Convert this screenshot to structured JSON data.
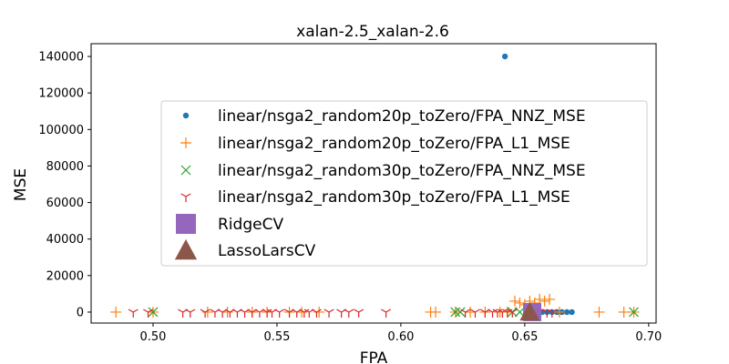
{
  "chart_data": {
    "type": "scatter",
    "title": "xalan-2.5_xalan-2.6",
    "xlabel": "FPA",
    "ylabel": "MSE",
    "xlim": [
      0.475,
      0.703
    ],
    "ylim": [
      -6000,
      147000
    ],
    "xticks": [
      0.5,
      0.55,
      0.6,
      0.65,
      0.7
    ],
    "xtick_labels": [
      "0.50",
      "0.55",
      "0.60",
      "0.65",
      "0.70"
    ],
    "yticks": [
      0,
      20000,
      40000,
      60000,
      80000,
      100000,
      120000,
      140000
    ],
    "ytick_labels": [
      "0",
      "20000",
      "40000",
      "60000",
      "80000",
      "100000",
      "120000",
      "140000"
    ],
    "grid": false,
    "legend_position": "center-right",
    "series": [
      {
        "name": "linear/nsga2_random20p_toZero/FPA_NNZ_MSE",
        "marker": "circle",
        "color": "#1f77b4",
        "x": [
          0.642,
          0.655,
          0.657,
          0.659,
          0.661,
          0.663,
          0.665,
          0.667,
          0.669,
          0.652,
          0.653
        ],
        "y": [
          140000,
          0,
          0,
          0,
          0,
          0,
          0,
          0,
          0,
          500,
          300
        ]
      },
      {
        "name": "linear/nsga2_random20p_toZero/FPA_L1_MSE",
        "marker": "plus",
        "color": "#ff7f0e",
        "x": [
          0.485,
          0.5,
          0.522,
          0.53,
          0.54,
          0.546,
          0.555,
          0.56,
          0.567,
          0.612,
          0.614,
          0.622,
          0.628,
          0.634,
          0.64,
          0.643,
          0.646,
          0.648,
          0.65,
          0.652,
          0.654,
          0.656,
          0.658,
          0.66,
          0.664,
          0.68,
          0.69,
          0.694
        ],
        "y": [
          0,
          0,
          0,
          0,
          0,
          0,
          0,
          0,
          0,
          0,
          0,
          0,
          0,
          0,
          0,
          0,
          6000,
          5000,
          4000,
          6000,
          5000,
          7000,
          6000,
          7000,
          0,
          0,
          0,
          0
        ]
      },
      {
        "name": "linear/nsga2_random30p_toZero/FPA_NNZ_MSE",
        "marker": "x",
        "color": "#2ca02c",
        "x": [
          0.5,
          0.622,
          0.624,
          0.645,
          0.648,
          0.694
        ],
        "y": [
          0,
          0,
          0,
          0,
          0,
          0
        ]
      },
      {
        "name": "linear/nsga2_random30p_toZero/FPA_L1_MSE",
        "marker": "tri_down",
        "color": "#d62728",
        "x": [
          0.492,
          0.498,
          0.512,
          0.515,
          0.521,
          0.525,
          0.528,
          0.531,
          0.534,
          0.537,
          0.54,
          0.543,
          0.546,
          0.548,
          0.551,
          0.555,
          0.558,
          0.561,
          0.563,
          0.566,
          0.571,
          0.576,
          0.579,
          0.583,
          0.594,
          0.626,
          0.63,
          0.634,
          0.637,
          0.639,
          0.641,
          0.643,
          0.645,
          0.656,
          0.659,
          0.661
        ],
        "y": [
          0,
          0,
          0,
          0,
          0,
          0,
          0,
          0,
          0,
          0,
          0,
          0,
          0,
          0,
          0,
          0,
          0,
          0,
          0,
          0,
          0,
          0,
          0,
          0,
          0,
          0,
          0,
          0,
          0,
          0,
          0,
          0,
          0,
          0,
          0,
          0
        ]
      },
      {
        "name": "RidgeCV",
        "marker": "square",
        "color": "#9467bd",
        "x": [
          0.653
        ],
        "y": [
          0
        ]
      },
      {
        "name": "LassoLarsCV",
        "marker": "triangle_up",
        "color": "#8c564b",
        "x": [
          0.652
        ],
        "y": [
          0
        ]
      }
    ]
  }
}
